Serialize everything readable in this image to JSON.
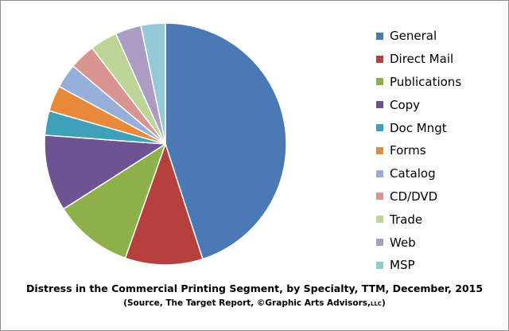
{
  "chart_data": {
    "type": "pie",
    "title": "Distress in the Commercial Printing Segment, by Specialty, TTM, December, 2015",
    "subtitle": {
      "main": "(Source, The Target Report, ©Graphic Arts Advisors,",
      "suffix": "LLC",
      "close": ")"
    },
    "legend_position": "right",
    "slices": [
      {
        "label": "General",
        "value": 45.5,
        "color": "#4a7ab5"
      },
      {
        "label": "Direct Mail",
        "value": 10.5,
        "color": "#b5403d"
      },
      {
        "label": "Publications",
        "value": 10.7,
        "color": "#8db04a"
      },
      {
        "label": "Copy",
        "value": 10.3,
        "color": "#6e5392"
      },
      {
        "label": "Doc Mngt",
        "value": 3.3,
        "color": "#3fa0ba"
      },
      {
        "label": "Forms",
        "value": 3.5,
        "color": "#e98a3a"
      },
      {
        "label": "Catalog",
        "value": 3.3,
        "color": "#96afd8"
      },
      {
        "label": "CD/DVD",
        "value": 3.5,
        "color": "#d8948f"
      },
      {
        "label": "Trade",
        "value": 3.7,
        "color": "#bdd597"
      },
      {
        "label": "Web",
        "value": 3.5,
        "color": "#ab9cc4"
      },
      {
        "label": "MSP",
        "value": 3.3,
        "color": "#94c9d8"
      }
    ]
  }
}
